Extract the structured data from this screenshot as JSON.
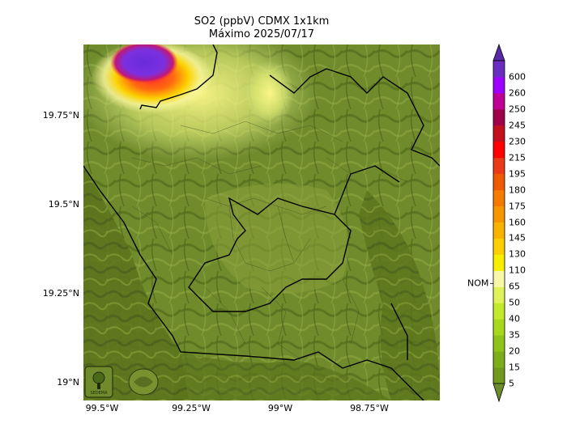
{
  "title_line1": "SO2 (ppbV) CDMX 1x1km",
  "title_line2": "Máximo 2025/07/17",
  "lat_labels": [
    "19.75°N",
    "19.5°N",
    "19.25°N",
    "19°N"
  ],
  "lon_labels": [
    "99.5°W",
    "99.25°W",
    "99°W",
    "98.75°W"
  ],
  "colorbar": {
    "nom_label": "NOM",
    "ticks": [
      "5",
      "15",
      "20",
      "35",
      "40",
      "50",
      "65",
      "110",
      "130",
      "145",
      "160",
      "175",
      "180",
      "195",
      "215",
      "230",
      "245",
      "250",
      "260",
      "600"
    ],
    "colors": [
      "#6f9a1e",
      "#7bae18",
      "#8ec41a",
      "#a6d81c",
      "#c2ea2a",
      "#dff25a",
      "#f8f9a8",
      "#f6f000",
      "#fcd000",
      "#f9b200",
      "#f79600",
      "#f47b00",
      "#ef5a00",
      "#ea3a18",
      "#ff0000",
      "#c4101c",
      "#a0004c",
      "#c00094",
      "#9e00ff",
      "#6a2dc2"
    ],
    "under_color": "#6a8c2a",
    "over_color": "#5b2aa6"
  },
  "logos": [
    "SEDEMA"
  ]
}
